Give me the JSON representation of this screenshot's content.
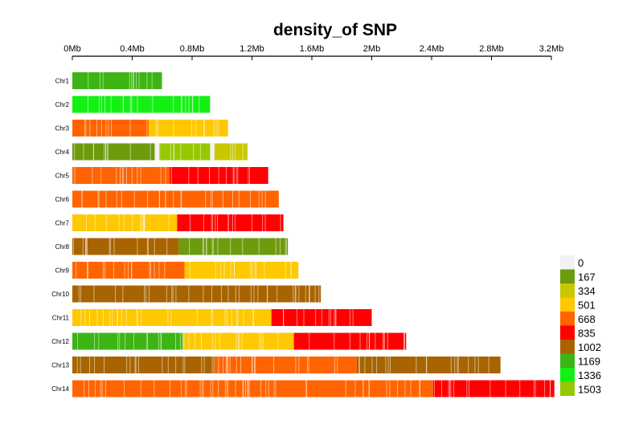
{
  "chart_data": {
    "type": "heatmap",
    "title": "density_of SNP",
    "x_ticks": [
      "0Mb",
      "0.4Mb",
      "0.8Mb",
      "1.2Mb",
      "1.6Mb",
      "2Mb",
      "2.4Mb",
      "2.8Mb",
      "3.2Mb"
    ],
    "xlim_mb": [
      0,
      3.2
    ],
    "legend": {
      "placement": "bottom-right",
      "bins": [
        {
          "label": "0",
          "color": "#f2f2f2"
        },
        {
          "label": "167",
          "color": "#6e9a0e"
        },
        {
          "label": "334",
          "color": "#c8c800"
        },
        {
          "label": "501",
          "color": "#ffc800"
        },
        {
          "label": "668",
          "color": "#ff6400"
        },
        {
          "label": "835",
          "color": "#ff0000"
        },
        {
          "label": "1002",
          "color": "#a86400"
        },
        {
          "label": "1169",
          "color": "#3cb414"
        },
        {
          "label": "1336",
          "color": "#14f014"
        },
        {
          "label": "1503",
          "color": "#96c800"
        }
      ]
    },
    "chromosomes": [
      {
        "name": "Chr1",
        "length_mb": 0.6,
        "segments": [
          {
            "start": 0,
            "end": 0.6,
            "bin": 7
          }
        ]
      },
      {
        "name": "Chr2",
        "length_mb": 0.92,
        "segments": [
          {
            "start": 0,
            "end": 0.92,
            "bin": 8
          }
        ]
      },
      {
        "name": "Chr3",
        "length_mb": 1.04,
        "segments": [
          {
            "start": 0,
            "end": 0.51,
            "bin": 4
          },
          {
            "start": 0.51,
            "end": 1.04,
            "bin": 3
          }
        ]
      },
      {
        "name": "Chr4",
        "length_mb": 1.17,
        "segments": [
          {
            "start": 0,
            "end": 0.55,
            "bin": 1
          },
          {
            "start": 0.58,
            "end": 0.92,
            "bin": 9
          },
          {
            "start": 0.95,
            "end": 1.17,
            "bin": 2
          }
        ]
      },
      {
        "name": "Chr5",
        "length_mb": 1.31,
        "segments": [
          {
            "start": 0,
            "end": 0.65,
            "bin": 4
          },
          {
            "start": 0.65,
            "end": 1.31,
            "bin": 5
          }
        ]
      },
      {
        "name": "Chr6",
        "length_mb": 1.38,
        "segments": [
          {
            "start": 0,
            "end": 0.72,
            "bin": 4
          },
          {
            "start": 0.72,
            "end": 1.38,
            "bin": 4
          }
        ]
      },
      {
        "name": "Chr7",
        "length_mb": 1.41,
        "segments": [
          {
            "start": 0,
            "end": 0.7,
            "bin": 3
          },
          {
            "start": 0.7,
            "end": 1.41,
            "bin": 5
          }
        ]
      },
      {
        "name": "Chr8",
        "length_mb": 1.44,
        "segments": [
          {
            "start": 0,
            "end": 0.71,
            "bin": 6
          },
          {
            "start": 0.71,
            "end": 1.44,
            "bin": 1
          }
        ]
      },
      {
        "name": "Chr9",
        "length_mb": 1.51,
        "segments": [
          {
            "start": 0,
            "end": 0.75,
            "bin": 4
          },
          {
            "start": 0.75,
            "end": 1.51,
            "bin": 3
          }
        ]
      },
      {
        "name": "Chr10",
        "length_mb": 1.66,
        "segments": [
          {
            "start": 0,
            "end": 1.66,
            "bin": 6
          }
        ]
      },
      {
        "name": "Chr11",
        "length_mb": 2.0,
        "segments": [
          {
            "start": 0,
            "end": 1.33,
            "bin": 3
          },
          {
            "start": 1.33,
            "end": 2.0,
            "bin": 5
          }
        ]
      },
      {
        "name": "Chr12",
        "length_mb": 2.23,
        "segments": [
          {
            "start": 0,
            "end": 0.74,
            "bin": 7
          },
          {
            "start": 0.74,
            "end": 1.48,
            "bin": 3
          },
          {
            "start": 1.48,
            "end": 2.23,
            "bin": 5
          }
        ]
      },
      {
        "name": "Chr13",
        "length_mb": 2.86,
        "segments": [
          {
            "start": 0,
            "end": 0.95,
            "bin": 6
          },
          {
            "start": 0.95,
            "end": 1.9,
            "bin": 4
          },
          {
            "start": 1.9,
            "end": 2.86,
            "bin": 6
          }
        ]
      },
      {
        "name": "Chr14",
        "length_mb": 3.22,
        "segments": [
          {
            "start": 0,
            "end": 2.41,
            "bin": 4
          },
          {
            "start": 2.41,
            "end": 3.22,
            "bin": 5
          }
        ]
      }
    ]
  }
}
